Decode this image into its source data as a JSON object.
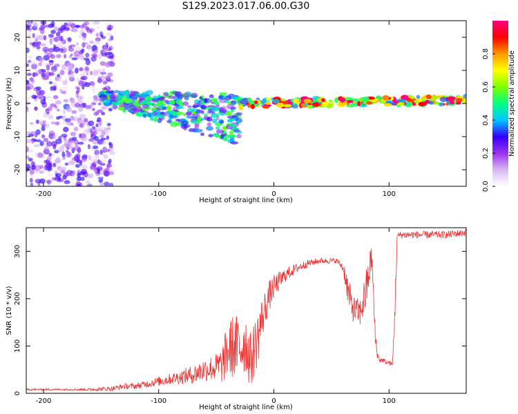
{
  "title": "S129.2023.017.06.00.G30",
  "chart_data": [
    {
      "type": "heatmap",
      "xlabel": "Height of straight line (km)",
      "ylabel": "Frequency (Hz)",
      "xlim": [
        -215,
        167
      ],
      "ylim": [
        -25,
        25
      ],
      "xticks": [
        -200,
        -100,
        0,
        100
      ],
      "yticks": [
        -20,
        -10,
        0,
        10,
        20
      ],
      "colorbar": {
        "label": "Normalized spectral amplitude",
        "range": [
          0,
          1
        ],
        "ticks": [
          "0.0",
          "0.2",
          "0.4",
          "0.6",
          "0.8"
        ],
        "colors": [
          "#ffffff",
          "#d8b8f4",
          "#9b30f0",
          "#3300ff",
          "#00c8ff",
          "#00ff80",
          "#80ff00",
          "#ffff00",
          "#ff9900",
          "#ff0000",
          "#ff0080"
        ]
      },
      "features": [
        {
          "desc": "scattered noise",
          "x": [
            -215,
            -140
          ],
          "y": [
            -25,
            25
          ],
          "level": 0.25
        },
        {
          "desc": "signal band",
          "x": [
            -150,
            -30
          ],
          "y_center": [
            2,
            -5
          ],
          "level": 0.45
        },
        {
          "desc": "steady carrier",
          "x": [
            -30,
            167
          ],
          "y_center": [
            0,
            1
          ],
          "level": 0.8
        }
      ]
    },
    {
      "type": "line",
      "xlabel": "Height of straight line (km)",
      "ylabel": "SNR (10 * v/v)",
      "xlim": [
        -215,
        167
      ],
      "ylim": [
        0,
        350
      ],
      "xticks": [
        -200,
        -100,
        0,
        100
      ],
      "yticks": [
        0,
        100,
        200,
        300
      ],
      "color": "#ee3030",
      "series": [
        {
          "x": [
            -215,
            -200,
            -180,
            -160,
            -140,
            -130,
            -120,
            -110,
            -100,
            -90,
            -80,
            -70,
            -60,
            -50,
            -45,
            -40,
            -35,
            -30,
            -25,
            -20,
            -15,
            -10,
            -5,
            0,
            10,
            20,
            30,
            40,
            50,
            55,
            60,
            62,
            65,
            70,
            75,
            80,
            85,
            88,
            90,
            92,
            95,
            98,
            100,
            103,
            105,
            107,
            110,
            120,
            130,
            140,
            150,
            160,
            167
          ],
          "y": [
            8,
            8,
            8,
            8,
            10,
            15,
            15,
            20,
            25,
            30,
            35,
            40,
            50,
            55,
            60,
            90,
            100,
            95,
            110,
            70,
            110,
            160,
            200,
            225,
            250,
            265,
            275,
            280,
            280,
            280,
            265,
            250,
            205,
            175,
            170,
            215,
            290,
            120,
            80,
            70,
            70,
            65,
            65,
            60,
            170,
            330,
            335,
            335,
            335,
            335,
            335,
            338,
            340
          ],
          "noise": [
            2,
            2,
            2,
            3,
            5,
            6,
            6,
            8,
            10,
            12,
            15,
            20,
            25,
            30,
            40,
            60,
            70,
            70,
            70,
            60,
            60,
            45,
            35,
            25,
            15,
            10,
            8,
            6,
            6,
            5,
            10,
            25,
            35,
            30,
            30,
            45,
            30,
            25,
            8,
            6,
            5,
            5,
            5,
            5,
            40,
            8,
            8,
            8,
            8,
            8,
            8,
            8,
            8
          ]
        }
      ]
    }
  ]
}
